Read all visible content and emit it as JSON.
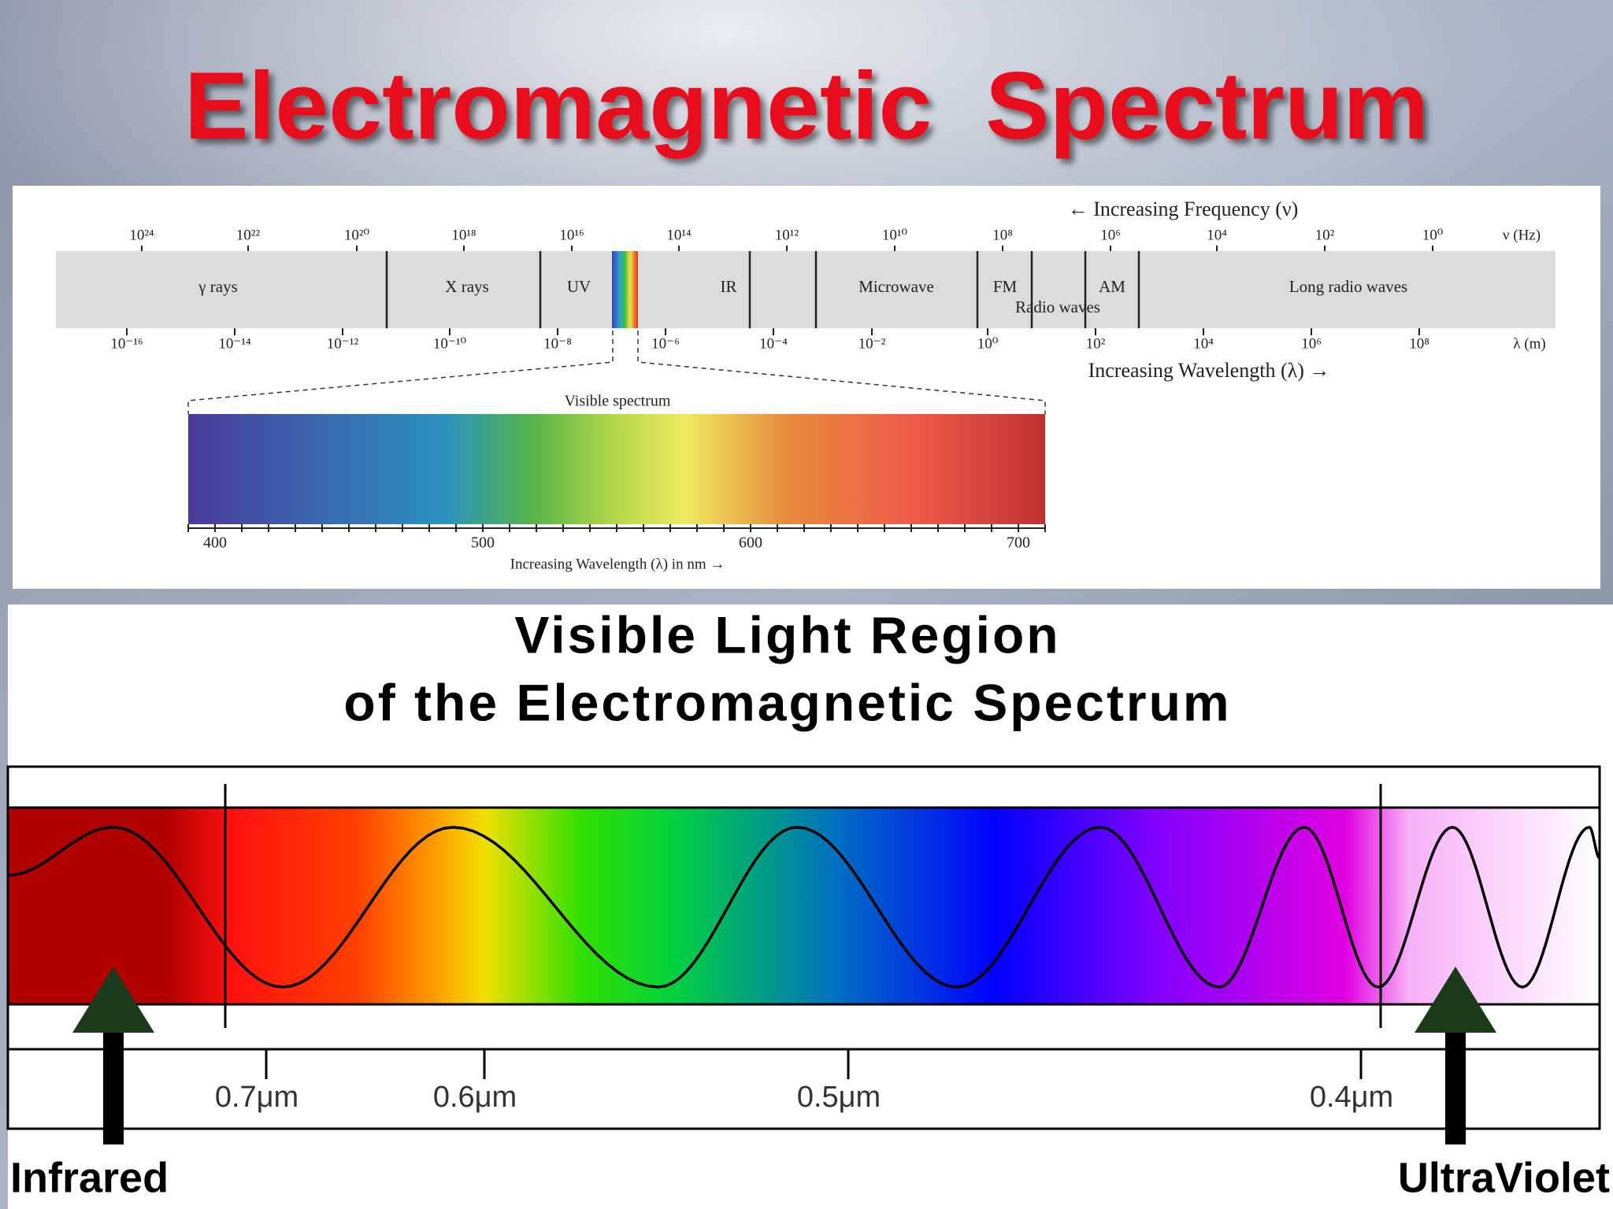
{
  "title": "Electromagnetic  Spectrum",
  "em_diagram": {
    "frequency_label": "← Increasing Frequency (ν)",
    "frequency_unit": "ν (Hz)",
    "frequency_ticks": [
      "10²⁴",
      "10²²",
      "10²⁰",
      "10¹⁸",
      "10¹⁶",
      "10¹⁴",
      "10¹²",
      "10¹⁰",
      "10⁸",
      "10⁶",
      "10⁴",
      "10²",
      "10⁰"
    ],
    "wavelength_ticks": [
      "10⁻¹⁶",
      "10⁻¹⁴",
      "10⁻¹²",
      "10⁻¹⁰",
      "10⁻⁸",
      "10⁻⁶",
      "10⁻⁴",
      "10⁻²",
      "10⁰",
      "10²",
      "10⁴",
      "10⁶",
      "10⁸"
    ],
    "wavelength_unit": "λ (m)",
    "wavelength_label": "Increasing Wavelength (λ) →",
    "regions": [
      "γ rays",
      "X rays",
      "UV",
      "IR",
      "Microwave",
      "FM",
      "AM",
      "Radio waves",
      "Long radio waves"
    ],
    "visible": {
      "title": "Visible spectrum",
      "ticks": [
        "400",
        "500",
        "600",
        "700"
      ],
      "axis_label": "Increasing Wavelength (λ) in nm →"
    }
  },
  "visible_light": {
    "title_lines": [
      "Visible Light Region",
      "of the Electromagnetic Spectrum"
    ],
    "ticks": [
      "0.7μm",
      "0.6μm",
      "0.5μm",
      "0.4μm"
    ],
    "left_label": "Infrared",
    "right_label": "UltraViolet"
  }
}
